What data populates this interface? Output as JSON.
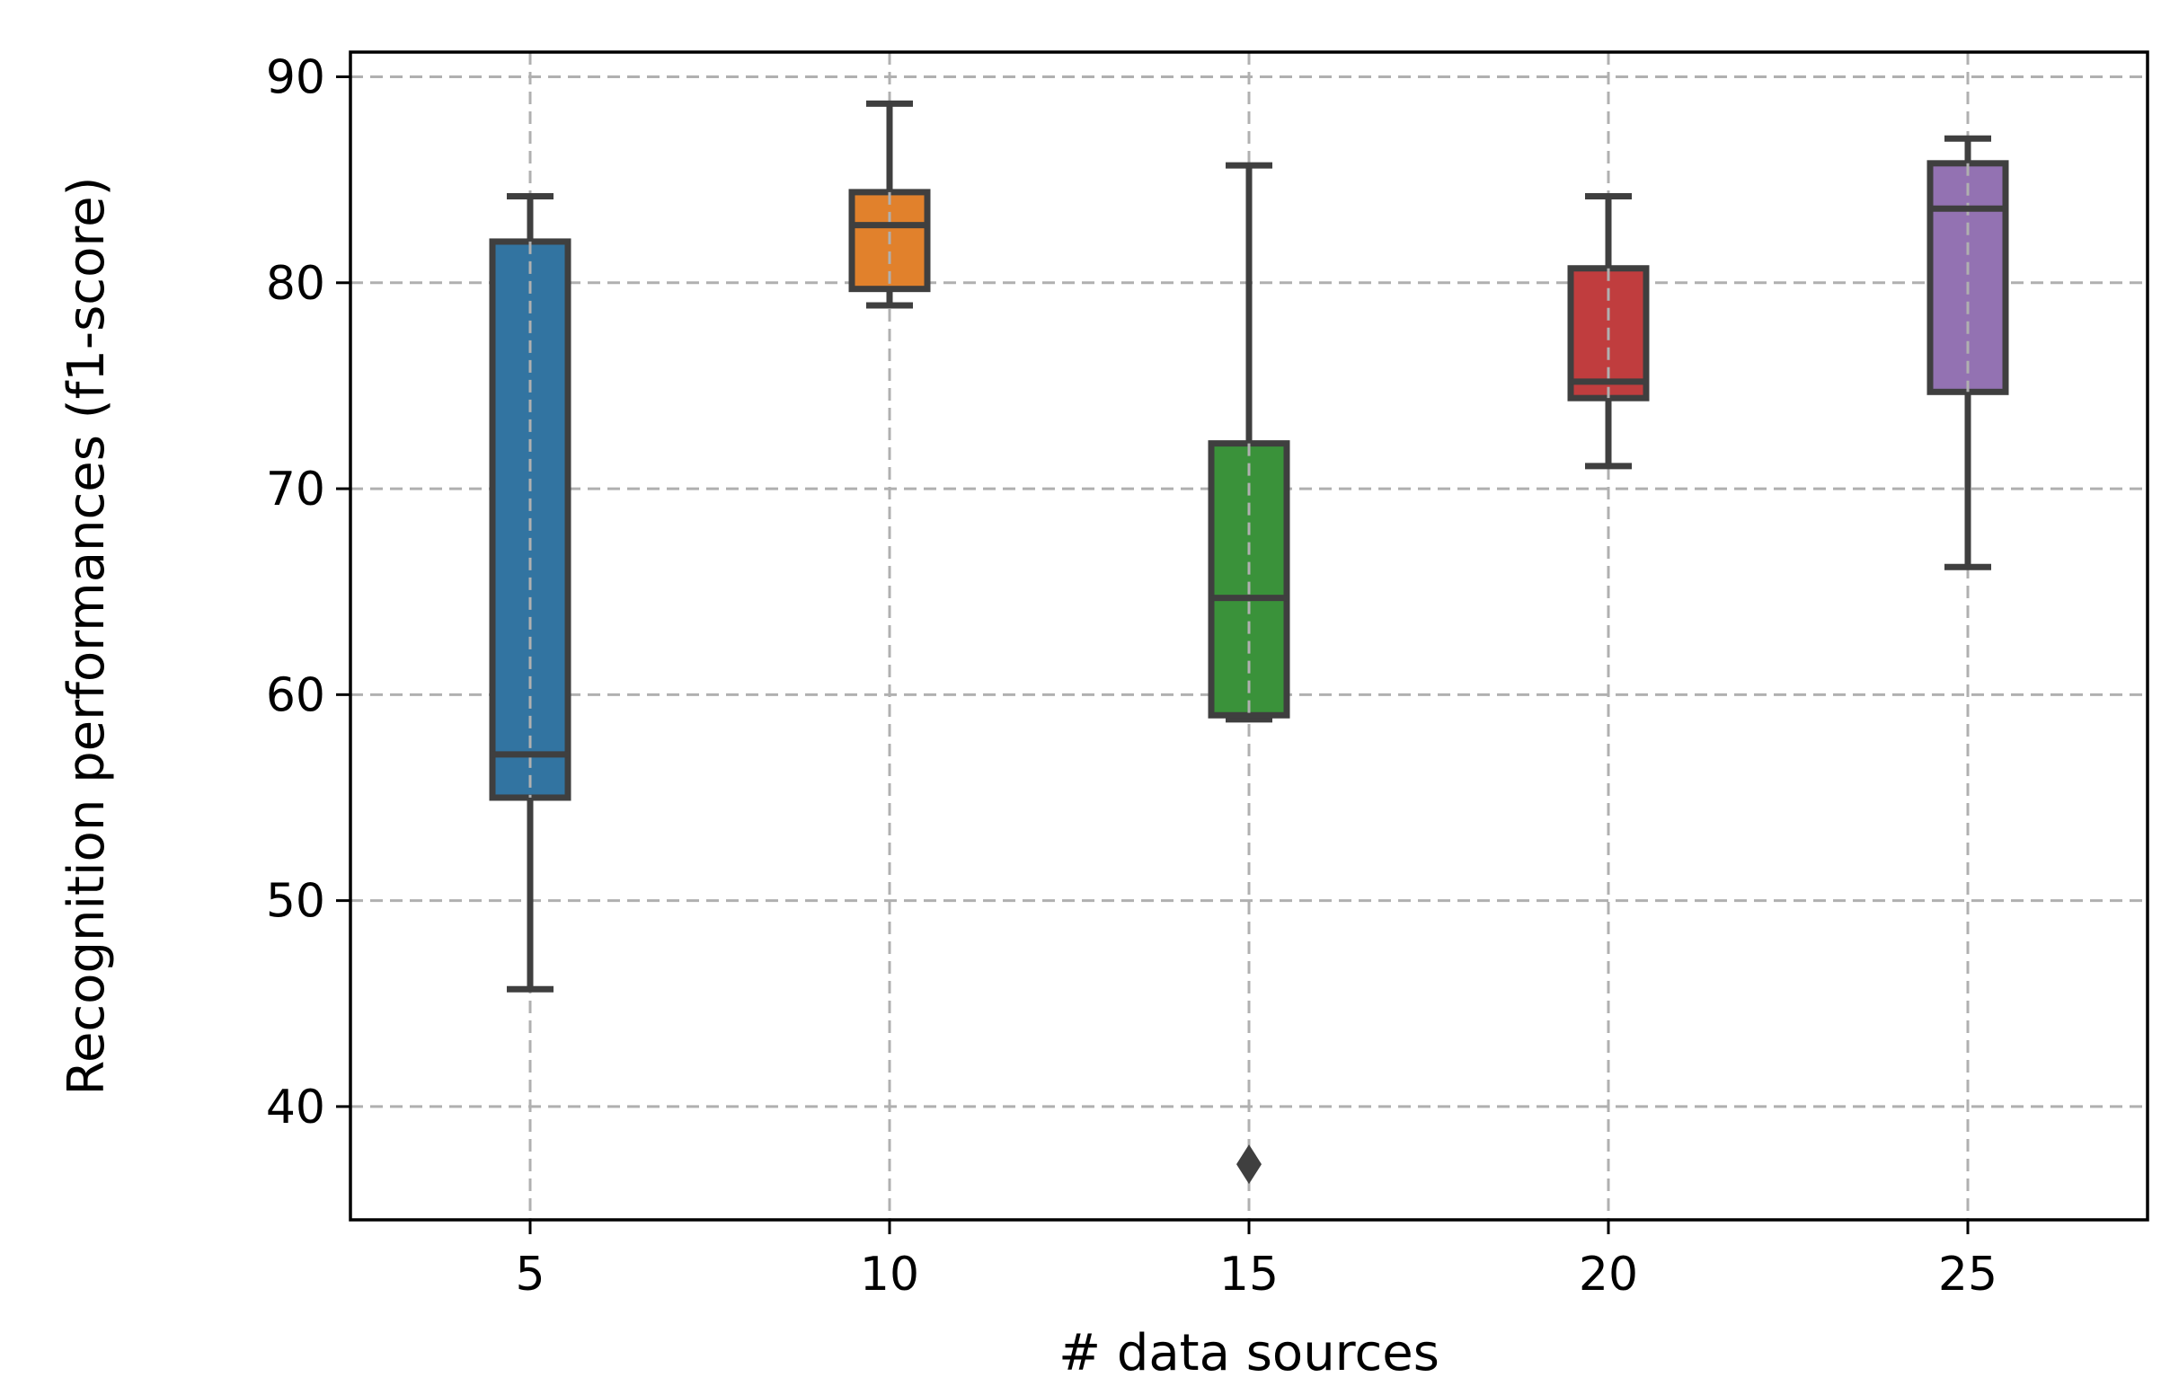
{
  "chart_data": {
    "type": "box",
    "title": "",
    "xlabel": "# data sources",
    "ylabel": "Recognition performances (f1-score)",
    "categories": [
      "5",
      "10",
      "15",
      "20",
      "25"
    ],
    "x_ticks": [
      "5",
      "10",
      "15",
      "20",
      "25"
    ],
    "y_ticks": [
      "40",
      "50",
      "60",
      "70",
      "80",
      "90"
    ],
    "ylim": [
      34.5,
      91.2
    ],
    "xlim": [
      2.5,
      27.5
    ],
    "grid": true,
    "legend": "none",
    "boxes": [
      {
        "category": "5",
        "x": 5,
        "whisker_low": 45.7,
        "q1": 55.0,
        "median": 57.1,
        "q3": 82.0,
        "whisker_high": 84.2,
        "outliers": [],
        "color": "#3274a1"
      },
      {
        "category": "10",
        "x": 10,
        "whisker_low": 78.9,
        "q1": 79.7,
        "median": 82.8,
        "q3": 84.4,
        "whisker_high": 88.7,
        "outliers": [],
        "color": "#e1812c"
      },
      {
        "category": "15",
        "x": 15,
        "whisker_low": 58.8,
        "q1": 59.0,
        "median": 64.7,
        "q3": 72.2,
        "whisker_high": 85.7,
        "outliers": [
          37.2
        ],
        "color": "#3a923a"
      },
      {
        "category": "20",
        "x": 20,
        "whisker_low": 71.1,
        "q1": 74.4,
        "median": 75.2,
        "q3": 80.7,
        "whisker_high": 84.2,
        "outliers": [],
        "color": "#c03d3e"
      },
      {
        "category": "25",
        "x": 25,
        "whisker_low": 66.2,
        "q1": 74.7,
        "median": 83.6,
        "q3": 85.8,
        "whisker_high": 87.0,
        "outliers": [],
        "color": "#9372b2"
      }
    ],
    "colors": {
      "box_edge": "#3f3f3f",
      "grid": "#b0b0b0",
      "axes": "#000000"
    }
  }
}
